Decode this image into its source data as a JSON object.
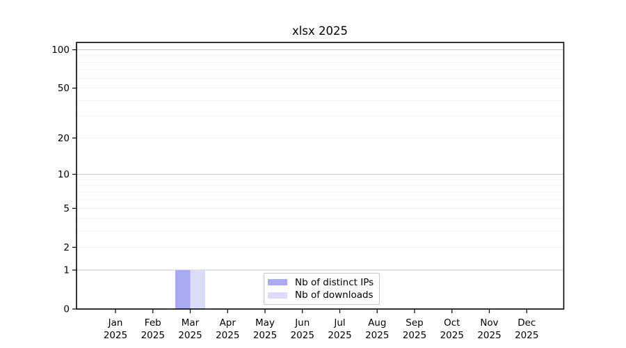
{
  "chart_data": {
    "type": "bar",
    "title": "xlsx 2025",
    "xlabel": "",
    "ylabel": "",
    "categories": [
      "Jan",
      "Feb",
      "Mar",
      "Apr",
      "May",
      "Jun",
      "Jul",
      "Aug",
      "Sep",
      "Oct",
      "Nov",
      "Dec"
    ],
    "category_year": "2025",
    "series": [
      {
        "name": "Nb of distinct IPs",
        "color": "#aaaaf2",
        "values": [
          0,
          0,
          1,
          0,
          0,
          0,
          0,
          0,
          0,
          0,
          0,
          0
        ]
      },
      {
        "name": "Nb of downloads",
        "color": "#dcdcf8",
        "values": [
          0,
          0,
          1,
          0,
          0,
          0,
          0,
          0,
          0,
          0,
          0,
          0
        ]
      }
    ],
    "y_axis": {
      "scale": "log10(1+v)",
      "max": 100,
      "tick_values": [
        0,
        1,
        2,
        5,
        10,
        20,
        50,
        100
      ],
      "major_gridlines": [
        1,
        10,
        100
      ],
      "minor_gridlines": [
        2,
        3,
        4,
        5,
        6,
        7,
        8,
        9,
        20,
        30,
        40,
        50,
        60,
        70,
        80,
        90
      ]
    },
    "ylim": [
      0,
      100
    ],
    "grid": true,
    "legend_position": "inside-bottom-center",
    "colors": {
      "axis": "#000000",
      "text": "#000000",
      "major_grid": "#c9c9c9",
      "minor_grid": "#ededed",
      "background": "#ffffff",
      "legend_border": "#c8c8c8"
    }
  }
}
